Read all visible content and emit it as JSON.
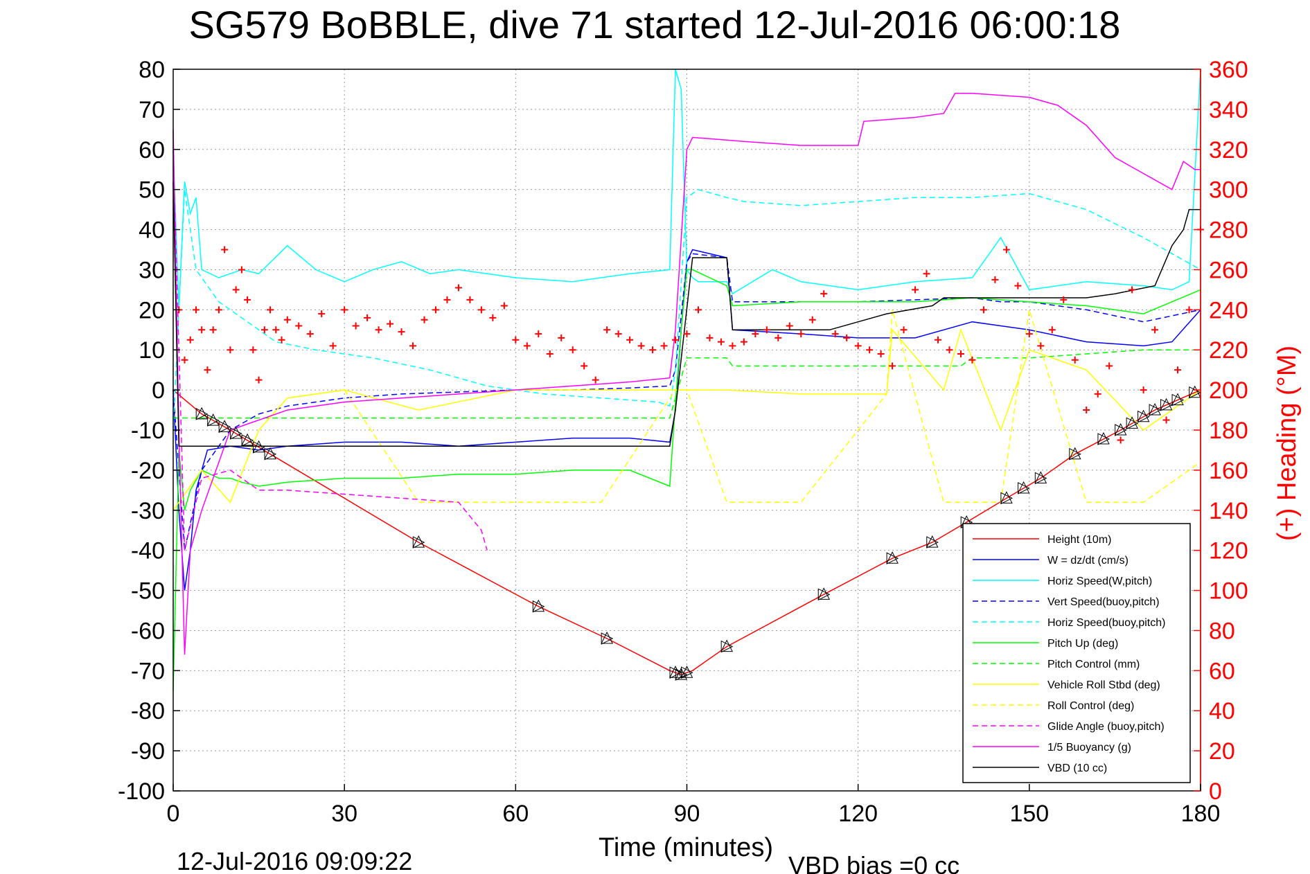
{
  "chart_data": {
    "type": "line",
    "title": "SG579 BoBBLE, dive 71 started 12-Jul-2016 06:00:18",
    "xlabel": "Time (minutes)",
    "ylabel_right": "(+) Heading (°M)",
    "footer_left": "12-Jul-2016 09:09:22",
    "footer_right": "VBD bias =0 cc",
    "xlim": [
      0,
      180
    ],
    "ylim": [
      -100,
      80
    ],
    "ylim_right": [
      0,
      360
    ],
    "x_ticks": [
      "0",
      "30",
      "60",
      "90",
      "120",
      "150",
      "180"
    ],
    "y_ticks": [
      "80",
      "70",
      "60",
      "50",
      "40",
      "30",
      "20",
      "10",
      "0",
      "-10",
      "-20",
      "-30",
      "-40",
      "-50",
      "-60",
      "-70",
      "-80",
      "-90",
      "-100"
    ],
    "y_right_ticks": [
      "360",
      "340",
      "320",
      "300",
      "280",
      "260",
      "240",
      "220",
      "200",
      "180",
      "160",
      "140",
      "120",
      "100",
      "80",
      "60",
      "40",
      "20",
      "0"
    ],
    "grid": true,
    "legend_position": "bottom-right",
    "series": [
      {
        "name": "Height (10m)",
        "color": "#ff0000",
        "dash": "solid",
        "x": [
          0,
          5,
          10,
          17,
          43,
          64,
          76,
          87,
          89,
          91,
          97,
          114,
          126,
          133,
          139,
          146,
          152,
          158,
          166,
          172,
          180
        ],
        "y": [
          0,
          -6,
          -10,
          -16,
          -38,
          -54,
          -62,
          -70,
          -71,
          -70,
          -64,
          -51,
          -42,
          -38,
          -33,
          -27,
          -22,
          -16,
          -10,
          -5,
          0
        ]
      },
      {
        "name": "W = dz/dt (cm/s)",
        "color": "#0000ff",
        "dash": "solid",
        "x": [
          0,
          1,
          2,
          3,
          4,
          6,
          10,
          15,
          20,
          30,
          40,
          50,
          60,
          70,
          80,
          87,
          88,
          89,
          90,
          91,
          97,
          98,
          110,
          120,
          130,
          140,
          145,
          150,
          160,
          170,
          175,
          180
        ],
        "y": [
          0,
          -30,
          -50,
          -40,
          -25,
          -15,
          -14,
          -15,
          -14,
          -13,
          -13,
          -14,
          -13,
          -12,
          -12,
          -13,
          -5,
          15,
          32,
          35,
          33,
          15,
          14,
          13,
          13,
          17,
          16,
          15,
          12,
          11,
          12,
          20
        ]
      },
      {
        "name": "Horiz Speed(W,pitch)",
        "color": "#00ffff",
        "dash": "solid",
        "x": [
          0,
          1,
          2,
          3,
          4,
          5,
          8,
          12,
          15,
          20,
          25,
          30,
          35,
          40,
          45,
          50,
          60,
          70,
          80,
          87,
          88,
          89,
          90,
          91,
          92,
          97,
          98,
          105,
          110,
          120,
          130,
          140,
          145,
          150,
          160,
          170,
          175,
          178,
          180
        ],
        "y": [
          60,
          20,
          52,
          44,
          48,
          30,
          28,
          30,
          29,
          36,
          30,
          27,
          30,
          32,
          29,
          30,
          28,
          27,
          29,
          30,
          80,
          75,
          30,
          28,
          27,
          27,
          24,
          30,
          27,
          25,
          27,
          28,
          38,
          25,
          27,
          26,
          25,
          27,
          80
        ]
      },
      {
        "name": "Vert Speed(buoy,pitch)",
        "color": "#0000ff",
        "dash": "dashed",
        "x": [
          0,
          2,
          5,
          10,
          15,
          20,
          30,
          40,
          50,
          60,
          70,
          80,
          87,
          88,
          90,
          91,
          97,
          98,
          120,
          140,
          145,
          150,
          160,
          170,
          180
        ],
        "y": [
          0,
          -40,
          -20,
          -10,
          -6,
          -4,
          -2,
          -1,
          -0.5,
          0,
          0,
          0.5,
          1,
          5,
          32,
          34,
          33,
          22,
          22,
          23,
          22,
          22,
          20,
          17,
          20
        ]
      },
      {
        "name": "Horiz Speed(buoy,pitch)",
        "color": "#00ffff",
        "dash": "dashed",
        "x": [
          0,
          2,
          4,
          8,
          12,
          18,
          25,
          35,
          45,
          55,
          65,
          75,
          85,
          87,
          88,
          90,
          92,
          97,
          100,
          110,
          120,
          130,
          140,
          150,
          160,
          170,
          180
        ],
        "y": [
          -10,
          50,
          30,
          22,
          18,
          12,
          10,
          8,
          5,
          1,
          -1,
          -2,
          -3,
          -4,
          5,
          48,
          50,
          48,
          47,
          46,
          47,
          48,
          48,
          49,
          45,
          38,
          30
        ]
      },
      {
        "name": "Pitch Up (deg)",
        "color": "#00ff00",
        "dash": "solid",
        "x": [
          0,
          1,
          2,
          3,
          5,
          8,
          10,
          12,
          15,
          20,
          30,
          40,
          50,
          60,
          70,
          80,
          87,
          88,
          89,
          90,
          91,
          97,
          98,
          110,
          120,
          130,
          140,
          150,
          160,
          170,
          180
        ],
        "y": [
          -75,
          -15,
          -30,
          -25,
          -20,
          -22,
          -22,
          -23,
          -24,
          -23,
          -22,
          -22,
          -21,
          -21,
          -20,
          -20,
          -24,
          -3,
          15,
          30,
          30,
          26,
          21,
          22,
          22,
          22,
          23,
          22,
          21,
          19,
          25
        ]
      },
      {
        "name": "Pitch Control (mm)",
        "color": "#00ff00",
        "dash": "dashed",
        "x": [
          0,
          4,
          5,
          87,
          88,
          90,
          97,
          98,
          110,
          138,
          140,
          150,
          160,
          170,
          180
        ],
        "y": [
          -7,
          -7,
          -7,
          -7,
          -2,
          8,
          8,
          6,
          6,
          6,
          8,
          8,
          9,
          10,
          10
        ]
      },
      {
        "name": "Vehicle Roll Stbd (deg)",
        "color": "#ffff00",
        "dash": "solid",
        "x": [
          0,
          5,
          10,
          15,
          20,
          30,
          43,
          60,
          75,
          88,
          90,
          97,
          110,
          125,
          126,
          135,
          138,
          145,
          150,
          160,
          170,
          180
        ],
        "y": [
          -30,
          -20,
          -28,
          -10,
          -2,
          0,
          -5,
          0,
          0,
          0,
          0,
          0,
          -1,
          -1,
          15,
          0,
          15,
          -10,
          10,
          5,
          -10,
          0
        ]
      },
      {
        "name": "Roll Control (deg)",
        "color": "#ffff00",
        "dash": "dashed",
        "x": [
          0,
          5,
          10,
          15,
          20,
          30,
          43,
          60,
          75,
          88,
          90,
          97,
          110,
          125,
          126,
          135,
          145,
          150,
          160,
          170,
          180
        ],
        "y": [
          -30,
          -20,
          -28,
          -10,
          -2,
          0,
          -28,
          -28,
          -28,
          0,
          0,
          -28,
          -28,
          -1,
          20,
          -28,
          -28,
          20,
          -28,
          -28,
          -18
        ]
      },
      {
        "name": "Glide Angle (buoy,pitch)",
        "color": "#ff00ff",
        "dash": "dashed",
        "x": [
          0,
          2,
          5,
          10,
          15,
          20,
          30,
          40,
          50,
          54,
          55
        ],
        "y": [
          60,
          -40,
          -22,
          -20,
          -25,
          -25,
          -26,
          -27,
          -28,
          -35,
          -40
        ]
      },
      {
        "name": "1/5 Buoyancy (g)",
        "color": "#ff00ff",
        "dash": "solid",
        "x": [
          0,
          1,
          2,
          3,
          5,
          10,
          20,
          30,
          40,
          50,
          60,
          70,
          80,
          87,
          88,
          90,
          91,
          100,
          110,
          120,
          121,
          130,
          135,
          137,
          140,
          150,
          155,
          160,
          165,
          170,
          175,
          177,
          179,
          180
        ],
        "y": [
          65,
          -10,
          -66,
          -40,
          -30,
          -10,
          -5,
          -3,
          -2,
          -1,
          0,
          1,
          2,
          3,
          15,
          60,
          63,
          62,
          61,
          61,
          67,
          68,
          69,
          74,
          74,
          73,
          71,
          66,
          58,
          54,
          50,
          57,
          55,
          55
        ]
      },
      {
        "name": "VBD (10 cc)",
        "color": "#000000",
        "dash": "solid",
        "x": [
          0,
          1,
          2,
          87,
          88,
          91,
          97,
          98,
          115,
          120,
          125,
          133,
          135,
          140,
          150,
          160,
          165,
          172,
          175,
          177,
          178,
          180
        ],
        "y": [
          52,
          -14,
          -14,
          -14,
          -5,
          33,
          33,
          15,
          15,
          17,
          19,
          21,
          23,
          23,
          23,
          23,
          24,
          26,
          36,
          40,
          45,
          45
        ]
      }
    ],
    "heading_series": {
      "name": "(+) Heading (°M)",
      "color": "#ff0000",
      "marker": "+",
      "axis": "right",
      "x": [
        1,
        2,
        3,
        4,
        5,
        6,
        7,
        8,
        9,
        10,
        11,
        12,
        13,
        14,
        15,
        16,
        17,
        18,
        19,
        20,
        22,
        24,
        26,
        28,
        30,
        32,
        34,
        36,
        38,
        40,
        42,
        44,
        46,
        48,
        50,
        52,
        54,
        56,
        58,
        60,
        62,
        64,
        66,
        68,
        70,
        72,
        74,
        76,
        78,
        80,
        82,
        84,
        86,
        88,
        90,
        92,
        94,
        96,
        98,
        100,
        102,
        104,
        106,
        108,
        110,
        112,
        114,
        116,
        118,
        120,
        122,
        124,
        126,
        128,
        130,
        132,
        134,
        136,
        138,
        140,
        142,
        144,
        146,
        148,
        150,
        152,
        154,
        156,
        158,
        160,
        162,
        164,
        166,
        168,
        170,
        172,
        174,
        176,
        178,
        180
      ],
      "y": [
        240,
        215,
        225,
        240,
        230,
        210,
        230,
        240,
        270,
        220,
        250,
        260,
        245,
        220,
        205,
        230,
        240,
        230,
        225,
        235,
        232,
        228,
        238,
        222,
        240,
        232,
        236,
        230,
        233,
        229,
        222,
        235,
        240,
        245,
        251,
        245,
        240,
        236,
        242,
        225,
        222,
        228,
        218,
        226,
        220,
        212,
        205,
        230,
        228,
        225,
        222,
        220,
        222,
        225,
        228,
        240,
        226,
        224,
        222,
        224,
        228,
        230,
        226,
        232,
        228,
        235,
        248,
        228,
        226,
        222,
        220,
        218,
        212,
        230,
        250,
        258,
        225,
        220,
        218,
        215,
        240,
        255,
        270,
        252,
        228,
        222,
        230,
        245,
        215,
        190,
        198,
        212,
        175,
        250,
        200,
        230,
        185,
        210,
        240,
        280
      ]
    },
    "hover_marker_x": [
      5,
      7,
      9,
      11,
      13,
      15,
      17,
      43,
      64,
      76,
      88,
      89,
      90,
      97,
      114,
      126,
      133,
      139,
      146,
      149,
      152,
      158,
      163,
      166,
      168,
      170,
      172,
      174,
      176,
      179
    ]
  }
}
